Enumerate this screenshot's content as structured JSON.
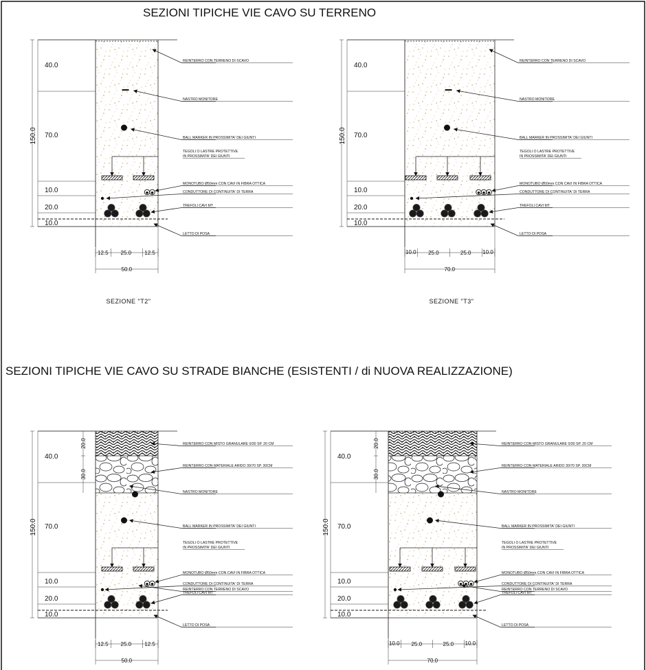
{
  "titles": {
    "top": "SEZIONI TIPICHE VIE CAVO SU TERRENO",
    "bottom": "SEZIONI TIPICHE VIE CAVO SU STRADE BIANCHE (ESISTENTI / di NUOVA REALIZZAZIONE)"
  },
  "labels": {
    "reinterro_scavo": "REINTERRO CON TERRENO DI SCAVO",
    "nastro": "NASTRO MONITORE",
    "ball_marker": "BALL MARKER IN PROSSIMITA' DEI GIUNTI",
    "tegoli_1": "TEGOLI O LASTRE PROTETTIVE",
    "tegoli_2": "IN PROSSIMITA' DEI GIUNTI",
    "monotubo": "MONOTUBO Ø50mm CON CAVI IN FIBRA OTTICA",
    "conduttore": "CONDUTTORE DI CONTINUITA' DI TERRA",
    "trefoli": "TREFOLI CAVI MT",
    "letto": "LETTO DI POSA",
    "misto_granulare": "REINTERRO CON MISTO GRANULARE 0/30 SP. 20 CM",
    "materiale_arido": "REINTERRO CON MATERIALE ARIDO 30/70 SP. 30CM"
  },
  "dims": {
    "d40": "40.0",
    "d70": "70.0",
    "d150": "150.0",
    "d10": "10.0",
    "d20": "20.0",
    "d20b": "20.0",
    "d30": "30.0",
    "w12_5": "12.5",
    "w25": "25.0",
    "w50": "50.0",
    "w70": "70.0",
    "w10": "10.0"
  },
  "sections": {
    "t2": "SEZIONE \"T2\"",
    "t3": "SEZIONE \"T3\""
  },
  "colors": {
    "soil_speck": "#c9954a",
    "ink": "#222222"
  }
}
